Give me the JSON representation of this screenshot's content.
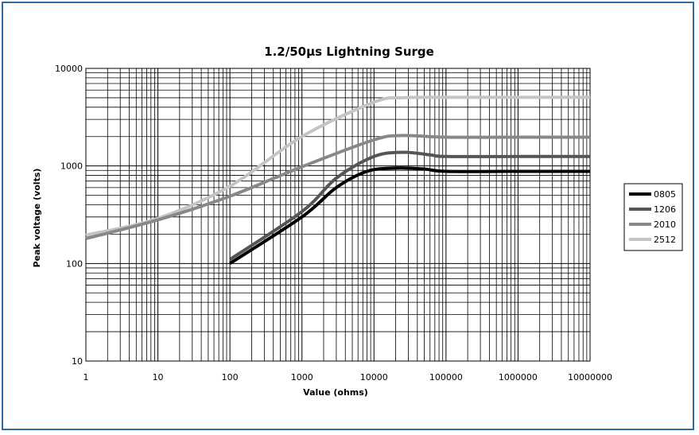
{
  "chart_data": {
    "type": "line",
    "title": "1.2/50µs Lightning Surge",
    "xlabel": "Value (ohms)",
    "ylabel": "Peak voltage (volts)",
    "x_scale": "log",
    "y_scale": "log",
    "xlim": [
      1,
      10000000
    ],
    "ylim": [
      10,
      10000
    ],
    "x_ticks": [
      "1",
      "10",
      "100",
      "1000",
      "10000",
      "100000",
      "1000000",
      "10000000"
    ],
    "y_ticks": [
      "10",
      "100",
      "1000",
      "10000"
    ],
    "grid": true,
    "legend_position": "right",
    "series": [
      {
        "name": "0805",
        "color": "#000000",
        "points": [
          [
            100,
            100
          ],
          [
            1000,
            300
          ],
          [
            3000,
            600
          ],
          [
            8000,
            880
          ],
          [
            20000,
            950
          ],
          [
            50000,
            930
          ],
          [
            100000,
            880
          ],
          [
            1000000,
            880
          ],
          [
            10000000,
            880
          ]
        ]
      },
      {
        "name": "1206",
        "color": "#555555",
        "points": [
          [
            100,
            110
          ],
          [
            1000,
            340
          ],
          [
            3000,
            750
          ],
          [
            10000,
            1250
          ],
          [
            25000,
            1380
          ],
          [
            60000,
            1300
          ],
          [
            100000,
            1250
          ],
          [
            1000000,
            1250
          ],
          [
            10000000,
            1250
          ]
        ]
      },
      {
        "name": "2010",
        "color": "#888888",
        "points": [
          [
            1,
            180
          ],
          [
            10,
            280
          ],
          [
            100,
            490
          ],
          [
            1000,
            980
          ],
          [
            10000,
            1850
          ],
          [
            25000,
            2050
          ],
          [
            100000,
            1970
          ],
          [
            1000000,
            1970
          ],
          [
            10000000,
            1970
          ]
        ]
      },
      {
        "name": "2512",
        "color": "#c4c4c4",
        "points": [
          [
            1,
            195
          ],
          [
            10,
            290
          ],
          [
            100,
            620
          ],
          [
            1000,
            2000
          ],
          [
            10000,
            4500
          ],
          [
            25000,
            5000
          ],
          [
            100000,
            5050
          ],
          [
            1000000,
            5050
          ],
          [
            10000000,
            5050
          ]
        ]
      }
    ]
  }
}
